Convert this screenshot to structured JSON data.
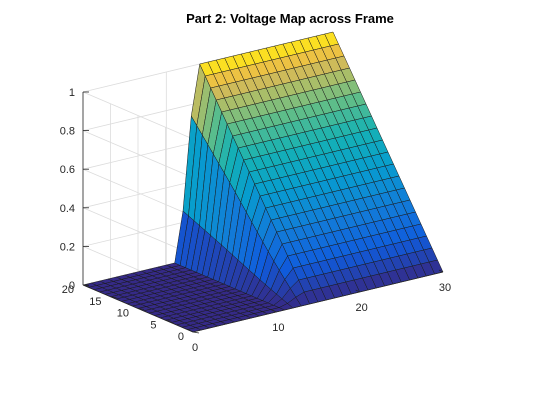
{
  "chart_data": {
    "type": "surface",
    "title": "Part 2: Voltage Map across Frame",
    "xlabel": "",
    "ylabel": "",
    "zlabel": "",
    "xlim": [
      0,
      30
    ],
    "ylim": [
      0,
      20
    ],
    "zlim": [
      0,
      1
    ],
    "x_ticks": [
      "0",
      "10",
      "20",
      "30"
    ],
    "y_ticks": [
      "0",
      "5",
      "10",
      "15",
      "20"
    ],
    "z_ticks": [
      "0",
      "0.2",
      "0.4",
      "0.6",
      "0.8",
      "1"
    ],
    "grid": true,
    "colormap": "parula",
    "grid_size": [
      31,
      21
    ],
    "surface": {
      "description_values": "Voltage is 0 on the region x from 0 to about 11 and on the face y = 0 for x beyond 11; voltage rises linearly with y from 0 at y = 0 to 1 at y = 20 for x beyond about 13, with a smooth transition near x = 11 to 14.",
      "zero_region_x_max": 11,
      "transition_x": [
        11,
        14
      ],
      "ramp_direction": "y",
      "ramp_value_at_y0": 0,
      "ramp_value_at_y20": 1
    }
  },
  "colors": {
    "background": "#ffffff",
    "edge": "#1a1a1a",
    "grid": "#dcdcdc",
    "axis": "#262626"
  }
}
